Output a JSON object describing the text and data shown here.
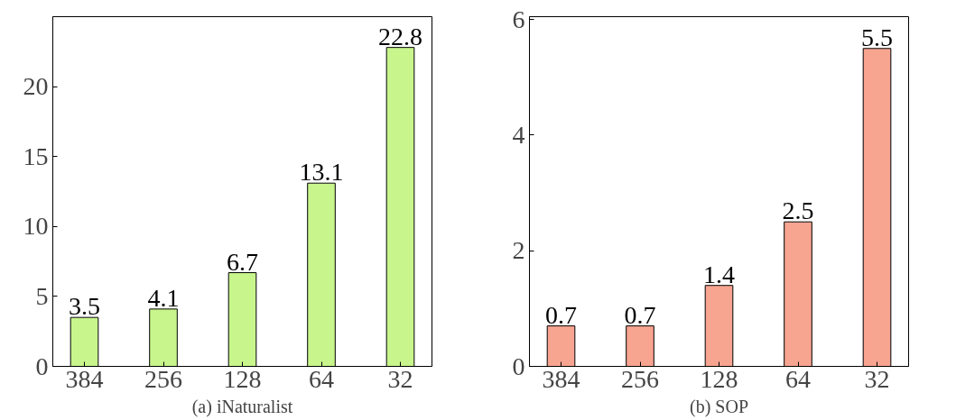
{
  "chart_data": [
    {
      "type": "bar",
      "title": "(a) iNaturalist",
      "categories": [
        "384",
        "256",
        "128",
        "64",
        "32"
      ],
      "values": [
        3.5,
        4.1,
        6.7,
        13.1,
        22.8
      ],
      "color": "#c8f58c",
      "ylim": [
        0,
        25
      ],
      "yticks": [
        0,
        5,
        10,
        15,
        20
      ],
      "data_labels": true,
      "grid": false
    },
    {
      "type": "bar",
      "title": "(b) SOP",
      "categories": [
        "384",
        "256",
        "128",
        "64",
        "32"
      ],
      "values": [
        0.7,
        0.7,
        1.4,
        2.5,
        5.5
      ],
      "color": "#f7a491",
      "ylim": [
        0,
        6.05
      ],
      "yticks": [
        0,
        2,
        4,
        6
      ],
      "data_labels": true,
      "grid": false
    }
  ]
}
